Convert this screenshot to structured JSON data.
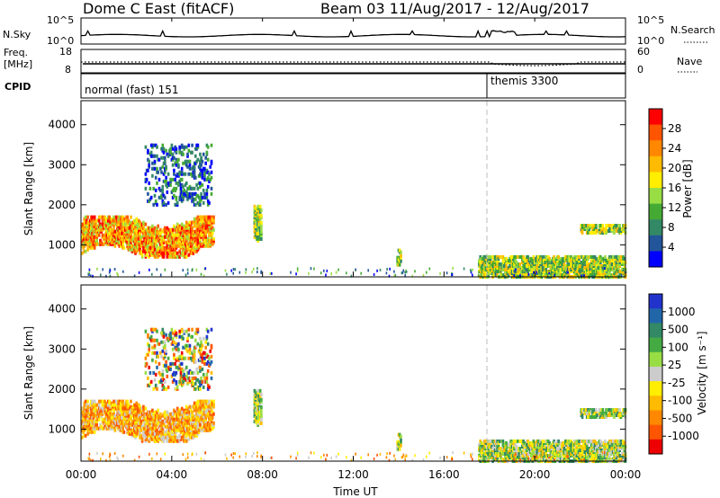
{
  "header": {
    "title": "Dome C East (fitACF)",
    "beam_info": "Beam 03 11/Aug/2017 - 12/Aug/2017"
  },
  "panels": {
    "nsky": {
      "label": "N.Sky",
      "ticks": [
        "10^5",
        "10^0"
      ]
    },
    "nsearch": {
      "label": "N.Search",
      "ticks": [
        "10^5",
        "10^0"
      ]
    },
    "freq": {
      "label_line1": "Freq.",
      "label_line2": "[MHz]",
      "ticks": [
        "18",
        "8"
      ]
    },
    "nave": {
      "label": "Nave",
      "ticks": [
        "60",
        "0"
      ]
    },
    "cpid": {
      "label": "CPID",
      "modes": [
        "normal (fast) 151",
        "themis 3300"
      ]
    }
  },
  "colorbars": {
    "power": {
      "title": "Power [dB]",
      "tick_labels": [
        "28",
        "24",
        "20",
        "16",
        "12",
        "8",
        "4"
      ],
      "colors": [
        "#ff0000",
        "#ff5500",
        "#ff8800",
        "#ffbb00",
        "#ffee00",
        "#99dd44",
        "#44aa33",
        "#338866",
        "#225599",
        "#0000ff"
      ]
    },
    "velocity": {
      "title": "Velocity [m s⁻¹]",
      "tick_labels": [
        "1000",
        "500",
        "100",
        "25",
        "-25",
        "-100",
        "-500",
        "-1000"
      ],
      "colors": [
        "#2233cc",
        "#2266aa",
        "#338866",
        "#44aa44",
        "#99dd44",
        "#cccccc",
        "#ffee00",
        "#ffbb00",
        "#ff8800",
        "#ff5500",
        "#ee0000"
      ]
    }
  },
  "chart_data": [
    {
      "type": "heatmap",
      "name": "power",
      "ylabel": "Slant Range [km]",
      "ylim": [
        200,
        4600
      ],
      "yticks": [
        1000,
        2000,
        3000,
        4000
      ],
      "xlim": [
        0,
        24
      ],
      "xticks": [
        "00:00",
        "04:00",
        "08:00",
        "12:00",
        "16:00",
        "20:00",
        "00:00"
      ],
      "xticks_hours": [
        0,
        4,
        8,
        12,
        16,
        20,
        24
      ],
      "regions": [
        {
          "t": [
            0.0,
            5.8
          ],
          "r": [
            700,
            1700
          ],
          "level": "high"
        },
        {
          "t": [
            2.8,
            5.7
          ],
          "r": [
            2000,
            3500
          ],
          "level": "low"
        },
        {
          "t": [
            7.6,
            7.9
          ],
          "r": [
            1100,
            2000
          ],
          "level": "mid"
        },
        {
          "t": [
            13.9,
            14.1
          ],
          "r": [
            500,
            900
          ],
          "level": "mid"
        },
        {
          "t": [
            17.5,
            24.0
          ],
          "r": [
            200,
            700
          ],
          "level": "mid"
        },
        {
          "t": [
            22.0,
            24.0
          ],
          "r": [
            1300,
            1500
          ],
          "level": "mid"
        }
      ]
    },
    {
      "type": "heatmap",
      "name": "velocity",
      "ylabel": "Slant Range [km]",
      "xlabel": "Time UT",
      "ylim": [
        200,
        4600
      ],
      "yticks": [
        1000,
        2000,
        3000,
        4000
      ],
      "xlim": [
        0,
        24
      ],
      "xticks": [
        "00:00",
        "04:00",
        "08:00",
        "12:00",
        "16:00",
        "20:00",
        "00:00"
      ],
      "xticks_hours": [
        0,
        4,
        8,
        12,
        16,
        20,
        24
      ],
      "mode_change_hour": 18
    }
  ]
}
